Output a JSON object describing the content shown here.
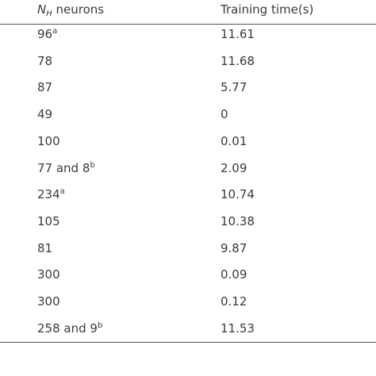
{
  "table": {
    "header": [
      {
        "symbol": "N",
        "subscript": "H",
        "text": "neurons"
      },
      "Training time(s)"
    ],
    "rows": [
      [
        {
          "text": "96",
          "sup": "a"
        },
        "11.61"
      ],
      [
        "78",
        "11.68"
      ],
      [
        "87",
        "5.77"
      ],
      [
        "49",
        "0"
      ],
      [
        "100",
        "0.01"
      ],
      [
        {
          "text": "77 and 8",
          "sup": "b"
        },
        "2.09"
      ],
      [
        {
          "text": "234",
          "sup": "a"
        },
        "10.74"
      ],
      [
        "105",
        "10.38"
      ],
      [
        "81",
        "9.87"
      ],
      [
        "300",
        "0.09"
      ],
      [
        "300",
        "0.12"
      ],
      [
        {
          "text": "258 and 9",
          "sup": "b"
        },
        "11.53"
      ]
    ]
  }
}
